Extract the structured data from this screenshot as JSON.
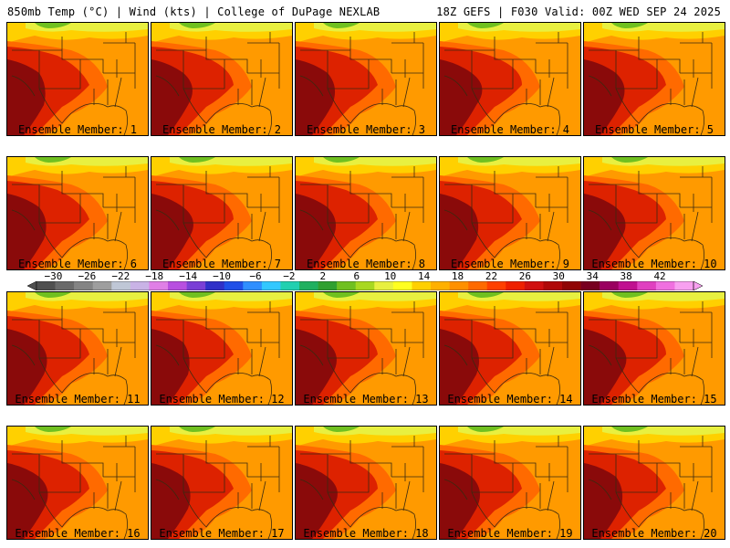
{
  "header": {
    "left": "850mb Temp (°C) | Wind (kts) | College of DuPage NEXLAB",
    "right": "18Z GEFS | F030 Valid: 00Z WED SEP 24 2025"
  },
  "member_prefix": "Ensemble Member: ",
  "members": [
    "1",
    "2",
    "3",
    "4",
    "5",
    "6",
    "7",
    "8",
    "9",
    "10",
    "11",
    "12",
    "13",
    "14",
    "15",
    "16",
    "17",
    "18",
    "19",
    "20"
  ],
  "colorbar": {
    "labels": [
      "-30",
      "-26",
      "-22",
      "-18",
      "-14",
      "-10",
      "-6",
      "-2",
      "2",
      "6",
      "10",
      "14",
      "18",
      "22",
      "26",
      "30",
      "34",
      "38",
      "42"
    ],
    "colors": [
      "#505050",
      "#6a6a6a",
      "#848484",
      "#9e9e9e",
      "#bfc7d6",
      "#c9b3e6",
      "#e07fe6",
      "#b84fe0",
      "#7a3fd6",
      "#3030c8",
      "#2050e8",
      "#2f8fff",
      "#33c8ff",
      "#22d0b0",
      "#20b060",
      "#30a030",
      "#70c020",
      "#a8d820",
      "#e8f040",
      "#ffff20",
      "#ffd000",
      "#ffb000",
      "#ff9000",
      "#ff6a00",
      "#ff4000",
      "#ee2000",
      "#d01010",
      "#b00808",
      "#900404",
      "#780020",
      "#9a0060",
      "#c01090",
      "#e040c0",
      "#f070e0",
      "#f8a0f0"
    ]
  },
  "map": {
    "colors": {
      "hot": "#8a0a0a",
      "red": "#dd2200",
      "orange": "#ff6a00",
      "warm": "#ff9a00",
      "yellow": "#ffd000",
      "cool": "#e8f040",
      "green": "#70c020",
      "line": "#3a2a10"
    }
  }
}
